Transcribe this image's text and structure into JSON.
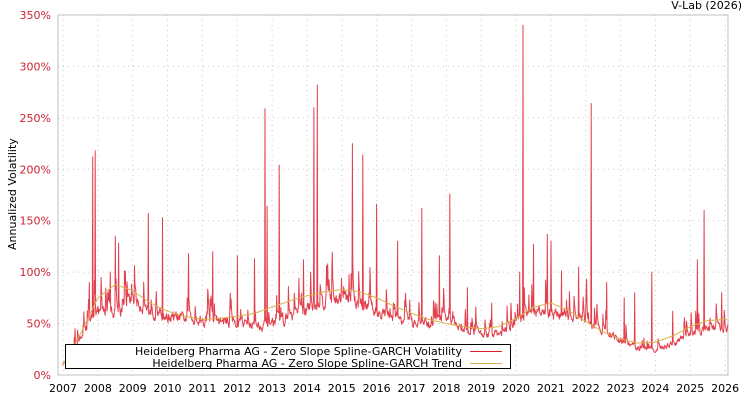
{
  "credit": "V-Lab (2026)",
  "colors": {
    "volatility": "#dd1f2f",
    "trend": "#d9b24a",
    "ytick": "#cc2233",
    "grid": "#c8c8c8",
    "axis": "#c0c0c0"
  },
  "legend": [
    {
      "label": "Heidelberg Pharma AG - Zero Slope Spline-GARCH Volatility",
      "color": "#dd1f2f"
    },
    {
      "label": "Heidelberg Pharma AG - Zero Slope Spline-GARCH Trend",
      "color": "#d9b24a"
    }
  ],
  "chart_data": {
    "type": "line",
    "title": "",
    "xlabel": "",
    "ylabel": "Annualized Volatility",
    "xlim": [
      2007.0,
      2026.1
    ],
    "ylim": [
      0,
      350
    ],
    "x_ticks": [
      "2007",
      "2008",
      "2009",
      "2010",
      "2011",
      "2012",
      "2013",
      "2014",
      "2015",
      "2016",
      "2017",
      "2018",
      "2019",
      "2020",
      "2021",
      "2022",
      "2023",
      "2024",
      "2025",
      "2026"
    ],
    "y_ticks": [
      "0%",
      "50%",
      "100%",
      "150%",
      "200%",
      "250%",
      "300%",
      "350%"
    ],
    "grid": true,
    "legend_position": "bottom-left inside",
    "series": [
      {
        "name": "Heidelberg Pharma AG - Zero Slope Spline-GARCH Volatility",
        "color": "#dd1f2f",
        "baseline": [
          [
            2007.0,
            10
          ],
          [
            2007.3,
            25
          ],
          [
            2007.6,
            40
          ],
          [
            2007.9,
            60
          ],
          [
            2008.2,
            60
          ],
          [
            2008.6,
            60
          ],
          [
            2009.0,
            72
          ],
          [
            2009.5,
            60
          ],
          [
            2010.0,
            55
          ],
          [
            2011.0,
            52
          ],
          [
            2012.0,
            50
          ],
          [
            2012.6,
            47
          ],
          [
            2013.0,
            50
          ],
          [
            2013.5,
            55
          ],
          [
            2014.0,
            62
          ],
          [
            2014.5,
            70
          ],
          [
            2015.0,
            72
          ],
          [
            2015.5,
            68
          ],
          [
            2016.0,
            60
          ],
          [
            2016.5,
            55
          ],
          [
            2017.0,
            50
          ],
          [
            2017.5,
            48
          ],
          [
            2018.0,
            55
          ],
          [
            2018.5,
            42
          ],
          [
            2019.0,
            40
          ],
          [
            2019.5,
            38
          ],
          [
            2020.0,
            50
          ],
          [
            2020.5,
            60
          ],
          [
            2021.0,
            58
          ],
          [
            2021.5,
            55
          ],
          [
            2022.0,
            50
          ],
          [
            2022.5,
            42
          ],
          [
            2023.0,
            33
          ],
          [
            2023.5,
            25
          ],
          [
            2024.0,
            25
          ],
          [
            2024.5,
            30
          ],
          [
            2025.0,
            38
          ],
          [
            2025.5,
            45
          ],
          [
            2026.0,
            45
          ]
        ],
        "spikes": [
          [
            2007.35,
            45
          ],
          [
            2007.75,
            90
          ],
          [
            2007.85,
            212
          ],
          [
            2007.92,
            218
          ],
          [
            2008.35,
            100
          ],
          [
            2008.5,
            135
          ],
          [
            2008.6,
            128
          ],
          [
            2009.45,
            157
          ],
          [
            2009.85,
            153
          ],
          [
            2010.6,
            118
          ],
          [
            2011.3,
            120
          ],
          [
            2012.0,
            116
          ],
          [
            2012.5,
            113
          ],
          [
            2012.8,
            259
          ],
          [
            2012.85,
            164
          ],
          [
            2013.2,
            204
          ],
          [
            2013.9,
            112
          ],
          [
            2014.2,
            260
          ],
          [
            2014.3,
            282
          ],
          [
            2014.6,
            108
          ],
          [
            2015.3,
            225
          ],
          [
            2015.6,
            214
          ],
          [
            2016.0,
            166
          ],
          [
            2016.6,
            130
          ],
          [
            2017.3,
            162
          ],
          [
            2017.8,
            116
          ],
          [
            2018.1,
            176
          ],
          [
            2018.6,
            85
          ],
          [
            2019.3,
            70
          ],
          [
            2020.1,
            100
          ],
          [
            2020.2,
            340
          ],
          [
            2020.5,
            127
          ],
          [
            2020.9,
            137
          ],
          [
            2021.0,
            130
          ],
          [
            2021.3,
            101
          ],
          [
            2021.8,
            105
          ],
          [
            2022.15,
            264
          ],
          [
            2022.6,
            90
          ],
          [
            2023.1,
            75
          ],
          [
            2023.4,
            80
          ],
          [
            2023.9,
            100
          ],
          [
            2024.5,
            62
          ],
          [
            2025.2,
            112
          ],
          [
            2025.4,
            160
          ],
          [
            2025.9,
            80
          ]
        ]
      },
      {
        "name": "Heidelberg Pharma AG - Zero Slope Spline-GARCH Trend",
        "color": "#d9b24a",
        "points": [
          [
            2007.0,
            10
          ],
          [
            2007.5,
            40
          ],
          [
            2008.0,
            75
          ],
          [
            2008.5,
            88
          ],
          [
            2009.0,
            82
          ],
          [
            2009.5,
            70
          ],
          [
            2010.0,
            62
          ],
          [
            2010.5,
            57
          ],
          [
            2011.0,
            54
          ],
          [
            2011.5,
            55
          ],
          [
            2012.0,
            57
          ],
          [
            2012.5,
            60
          ],
          [
            2013.0,
            66
          ],
          [
            2013.5,
            72
          ],
          [
            2014.0,
            77
          ],
          [
            2014.5,
            81
          ],
          [
            2015.0,
            83
          ],
          [
            2015.5,
            81
          ],
          [
            2016.0,
            75
          ],
          [
            2016.5,
            67
          ],
          [
            2017.0,
            60
          ],
          [
            2017.5,
            54
          ],
          [
            2018.0,
            50
          ],
          [
            2018.5,
            47
          ],
          [
            2019.0,
            45
          ],
          [
            2019.5,
            47
          ],
          [
            2020.0,
            55
          ],
          [
            2020.5,
            66
          ],
          [
            2021.0,
            70
          ],
          [
            2021.5,
            63
          ],
          [
            2022.0,
            52
          ],
          [
            2022.5,
            42
          ],
          [
            2023.0,
            35
          ],
          [
            2023.5,
            31
          ],
          [
            2024.0,
            32
          ],
          [
            2024.5,
            38
          ],
          [
            2025.0,
            47
          ],
          [
            2025.5,
            53
          ],
          [
            2026.0,
            54
          ]
        ]
      }
    ]
  }
}
